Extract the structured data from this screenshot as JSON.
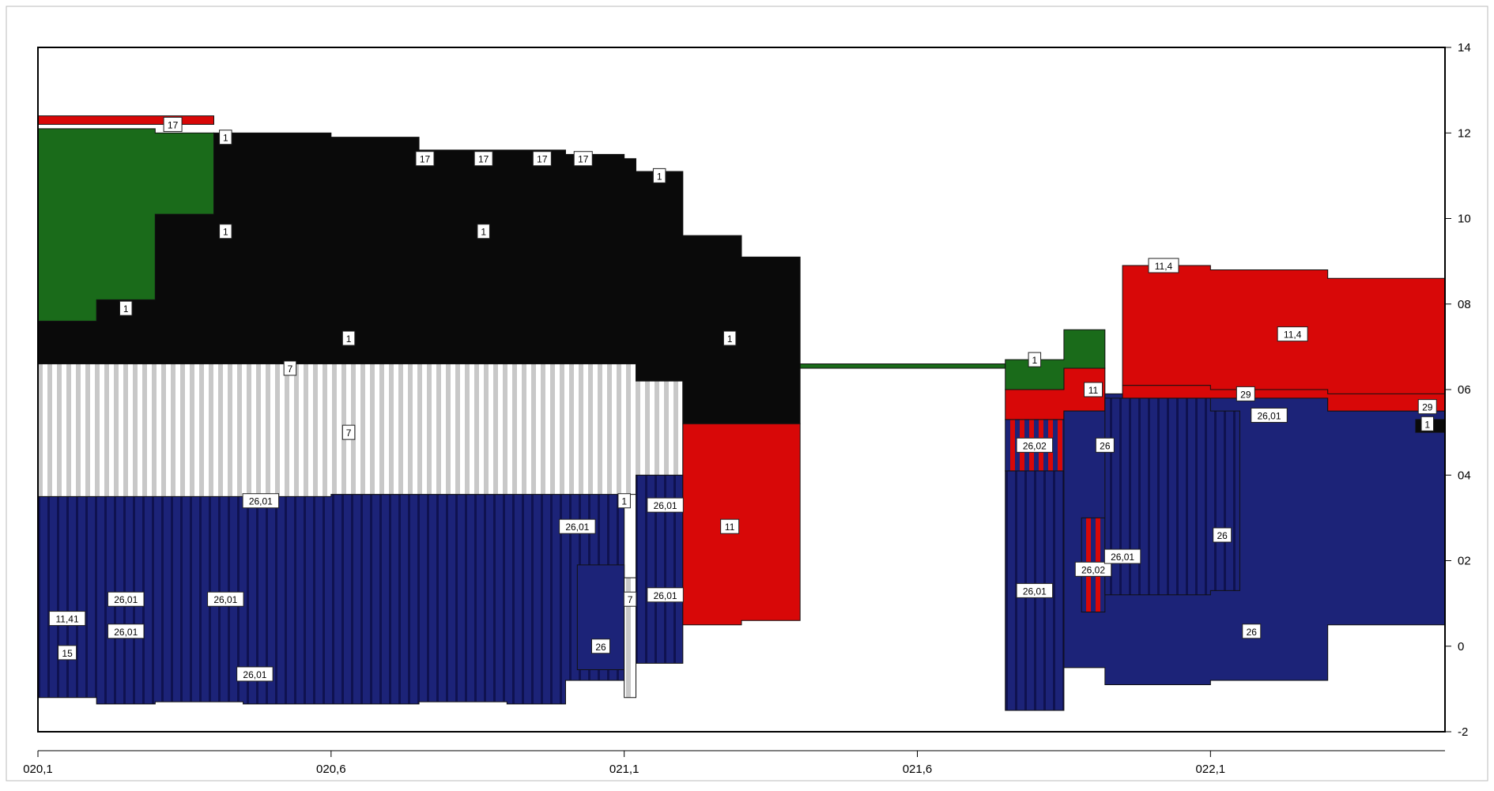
{
  "colors": {
    "navy": "#1c2378",
    "navy_dark": "#0f1250",
    "black": "#0a0a0a",
    "green": "#1a6b1a",
    "red": "#d80808",
    "light_gray": "#c8c8c8",
    "white": "#ffffff",
    "orange": "#f08020"
  },
  "chart_data": {
    "type": "area",
    "title": "",
    "xlabel": "",
    "ylabel": "",
    "xlim": [
      20.1,
      22.5
    ],
    "ylim": [
      -2,
      14
    ],
    "x_ticks": [
      {
        "value": 20.1,
        "label": "020,1"
      },
      {
        "value": 20.6,
        "label": "020,6"
      },
      {
        "value": 21.1,
        "label": "021,1"
      },
      {
        "value": 21.6,
        "label": "021,6"
      },
      {
        "value": 22.1,
        "label": "022,1"
      }
    ],
    "y_ticks": [
      {
        "value": 14,
        "label": "14"
      },
      {
        "value": 12,
        "label": "12"
      },
      {
        "value": 10,
        "label": "10"
      },
      {
        "value": 8,
        "label": "08"
      },
      {
        "value": 6,
        "label": "06"
      },
      {
        "value": 4,
        "label": "04"
      },
      {
        "value": 2,
        "label": "02"
      },
      {
        "value": 0,
        "label": "0"
      },
      {
        "value": -2,
        "label": "-2"
      }
    ],
    "y_axis_position": "right",
    "grid": false,
    "layers": [
      {
        "code": "26,01",
        "color": "navy",
        "pattern": "vstripe",
        "points": [
          [
            20.1,
            -1.2,
            3.5
          ],
          [
            20.2,
            -1.35,
            3.7
          ],
          [
            20.3,
            -1.3,
            3.6
          ],
          [
            20.45,
            -1.35,
            3.6
          ],
          [
            20.6,
            -1.35,
            3.55
          ],
          [
            20.75,
            -1.3,
            3.55
          ],
          [
            20.9,
            -1.35,
            3.6
          ],
          [
            21.0,
            -0.8,
            3.8
          ],
          [
            21.1,
            -0.6,
            3.55
          ]
        ]
      },
      {
        "code": "26",
        "color": "navy",
        "pattern": "solid",
        "points": [
          [
            21.02,
            -0.55,
            1.9
          ],
          [
            21.1,
            -0.5,
            3.4
          ]
        ]
      },
      {
        "code": "7",
        "color": "light_gray",
        "pattern": "vstripe",
        "points": [
          [
            21.1,
            -1.2,
            1.6
          ],
          [
            21.12,
            -1.2,
            1.6
          ]
        ]
      },
      {
        "code": "26,01",
        "color": "navy",
        "pattern": "vstripe",
        "points": [
          [
            21.12,
            -0.4,
            4.0
          ],
          [
            21.2,
            -0.4,
            3.4
          ]
        ]
      },
      {
        "code": "7",
        "color": "light_gray",
        "pattern": "vstripe",
        "points": [
          [
            20.1,
            3.5,
            6.6
          ],
          [
            20.6,
            3.55,
            6.6
          ],
          [
            21.1,
            3.55,
            6.6
          ],
          [
            21.12,
            4.0,
            6.2
          ],
          [
            21.2,
            3.9,
            6.2
          ]
        ]
      },
      {
        "code": "1",
        "color": "black",
        "pattern": "solid",
        "points": [
          [
            20.1,
            6.6,
            7.6
          ],
          [
            20.2,
            6.6,
            8.1
          ],
          [
            20.3,
            6.6,
            10.1
          ],
          [
            20.4,
            6.6,
            12.0
          ],
          [
            20.6,
            6.6,
            11.9
          ],
          [
            20.75,
            6.6,
            11.6
          ],
          [
            21.0,
            6.6,
            11.5
          ],
          [
            21.1,
            6.6,
            11.4
          ],
          [
            21.12,
            6.2,
            11.1
          ],
          [
            21.2,
            5.2,
            9.6
          ],
          [
            21.3,
            5.2,
            9.1
          ],
          [
            21.4,
            5.2,
            7.2
          ]
        ]
      },
      {
        "code": "1",
        "color": "green",
        "pattern": "solid",
        "points": [
          [
            20.1,
            7.6,
            12.1
          ],
          [
            20.2,
            8.1,
            12.1
          ],
          [
            20.3,
            10.1,
            12.0
          ],
          [
            20.4,
            12.0,
            12.1
          ]
        ]
      },
      {
        "code": "17",
        "color": "red",
        "pattern": "mixed",
        "points": [
          [
            20.1,
            12.2,
            12.4
          ],
          [
            20.4,
            12.1,
            12.3
          ]
        ]
      },
      {
        "code": "11",
        "color": "red",
        "pattern": "solid",
        "points": [
          [
            21.2,
            0.5,
            5.2
          ],
          [
            21.3,
            0.6,
            5.2
          ],
          [
            21.4,
            0.6,
            5.2
          ]
        ]
      },
      {
        "code": "1",
        "color": "green",
        "pattern": "solid",
        "points": [
          [
            21.4,
            6.5,
            6.6
          ],
          [
            21.75,
            6.5,
            6.6
          ]
        ]
      },
      {
        "code": "26,01",
        "color": "navy",
        "pattern": "vstripe",
        "points": [
          [
            21.75,
            -1.5,
            4.1
          ],
          [
            21.85,
            -1.5,
            4.1
          ]
        ]
      },
      {
        "code": "26,02",
        "color": "red",
        "pattern": "vstripe-navy",
        "points": [
          [
            21.75,
            4.1,
            5.3
          ],
          [
            21.85,
            4.1,
            5.3
          ]
        ]
      },
      {
        "code": "11",
        "color": "red",
        "pattern": "solid",
        "points": [
          [
            21.75,
            5.3,
            6.0
          ],
          [
            21.85,
            5.5,
            6.5
          ],
          [
            21.92,
            5.9,
            6.5
          ]
        ]
      },
      {
        "code": "1",
        "color": "green",
        "pattern": "solid",
        "points": [
          [
            21.75,
            6.0,
            6.7
          ],
          [
            21.85,
            6.5,
            7.4
          ],
          [
            21.92,
            6.5,
            7.6
          ]
        ]
      },
      {
        "code": "26",
        "color": "navy",
        "pattern": "solid",
        "points": [
          [
            21.85,
            -0.5,
            5.5
          ],
          [
            21.92,
            -0.9,
            5.9
          ],
          [
            22.1,
            -0.8,
            5.9
          ],
          [
            22.3,
            0.5,
            5.5
          ],
          [
            22.5,
            2.0,
            5.1
          ]
        ]
      },
      {
        "code": "26,02",
        "color": "red",
        "pattern": "vstripe-navy",
        "points": [
          [
            21.88,
            0.8,
            3.0
          ],
          [
            21.92,
            0.8,
            3.0
          ]
        ]
      },
      {
        "code": "26,01",
        "color": "navy",
        "pattern": "vstripe",
        "points": [
          [
            21.92,
            1.2,
            5.8
          ],
          [
            22.1,
            1.3,
            5.5
          ],
          [
            22.15,
            4.5,
            5.5
          ]
        ]
      },
      {
        "code": "29",
        "color": "red",
        "pattern": "solid",
        "points": [
          [
            21.95,
            5.8,
            6.1
          ],
          [
            22.3,
            5.5,
            6.0
          ],
          [
            22.5,
            5.3,
            5.7
          ]
        ]
      },
      {
        "code": "11,4",
        "color": "red",
        "pattern": "solid",
        "points": [
          [
            21.95,
            6.1,
            8.9
          ],
          [
            22.1,
            6.0,
            8.8
          ],
          [
            22.3,
            5.9,
            8.6
          ],
          [
            22.5,
            5.8,
            8.6
          ]
        ]
      },
      {
        "code": "1",
        "color": "black",
        "pattern": "solid",
        "points": [
          [
            22.45,
            5.0,
            5.3
          ],
          [
            22.5,
            5.0,
            5.3
          ]
        ]
      }
    ],
    "annotations": [
      {
        "label": "17",
        "x": 20.33,
        "y": 12.2
      },
      {
        "label": "1",
        "x": 20.42,
        "y": 11.9
      },
      {
        "label": "17",
        "x": 20.76,
        "y": 11.4
      },
      {
        "label": "17",
        "x": 20.86,
        "y": 11.4
      },
      {
        "label": "17",
        "x": 20.96,
        "y": 11.4
      },
      {
        "label": "17",
        "x": 21.03,
        "y": 11.4
      },
      {
        "label": "1",
        "x": 21.16,
        "y": 11.0
      },
      {
        "label": "1",
        "x": 20.42,
        "y": 9.7
      },
      {
        "label": "1",
        "x": 20.86,
        "y": 9.7
      },
      {
        "label": "1",
        "x": 20.25,
        "y": 7.9
      },
      {
        "label": "1",
        "x": 20.63,
        "y": 7.2
      },
      {
        "label": "1",
        "x": 21.28,
        "y": 7.2
      },
      {
        "label": "7",
        "x": 20.53,
        "y": 6.5
      },
      {
        "label": "7",
        "x": 20.63,
        "y": 5.0
      },
      {
        "label": "26,01",
        "x": 20.48,
        "y": 3.4
      },
      {
        "label": "1",
        "x": 21.1,
        "y": 3.4
      },
      {
        "label": "26,01",
        "x": 21.17,
        "y": 3.3
      },
      {
        "label": "26,01",
        "x": 21.02,
        "y": 2.8
      },
      {
        "label": "11",
        "x": 21.28,
        "y": 2.8
      },
      {
        "label": "26,01",
        "x": 20.25,
        "y": 1.1
      },
      {
        "label": "26,01",
        "x": 20.42,
        "y": 1.1
      },
      {
        "label": "7",
        "x": 21.11,
        "y": 1.1
      },
      {
        "label": "26,01",
        "x": 21.17,
        "y": 1.2
      },
      {
        "label": "11,41",
        "x": 20.15,
        "y": 0.65
      },
      {
        "label": "26,01",
        "x": 20.25,
        "y": 0.35
      },
      {
        "label": "15",
        "x": 20.15,
        "y": -0.15
      },
      {
        "label": "26",
        "x": 21.06,
        "y": 0.0
      },
      {
        "label": "26,01",
        "x": 20.47,
        "y": -0.65
      },
      {
        "label": "1",
        "x": 21.8,
        "y": 6.7
      },
      {
        "label": "11",
        "x": 21.9,
        "y": 6.0
      },
      {
        "label": "26,02",
        "x": 21.8,
        "y": 4.7
      },
      {
        "label": "26",
        "x": 21.92,
        "y": 4.7
      },
      {
        "label": "26,01",
        "x": 21.8,
        "y": 1.3
      },
      {
        "label": "26,02",
        "x": 21.9,
        "y": 1.8
      },
      {
        "label": "26,01",
        "x": 21.95,
        "y": 2.1
      },
      {
        "label": "11,4",
        "x": 22.02,
        "y": 8.9
      },
      {
        "label": "11,4",
        "x": 22.24,
        "y": 7.3
      },
      {
        "label": "29",
        "x": 22.16,
        "y": 5.9
      },
      {
        "label": "26,01",
        "x": 22.2,
        "y": 5.4
      },
      {
        "label": "26",
        "x": 22.12,
        "y": 2.6
      },
      {
        "label": "26",
        "x": 22.17,
        "y": 0.35
      },
      {
        "label": "29",
        "x": 22.47,
        "y": 5.6
      },
      {
        "label": "1",
        "x": 22.47,
        "y": 5.2
      }
    ]
  }
}
